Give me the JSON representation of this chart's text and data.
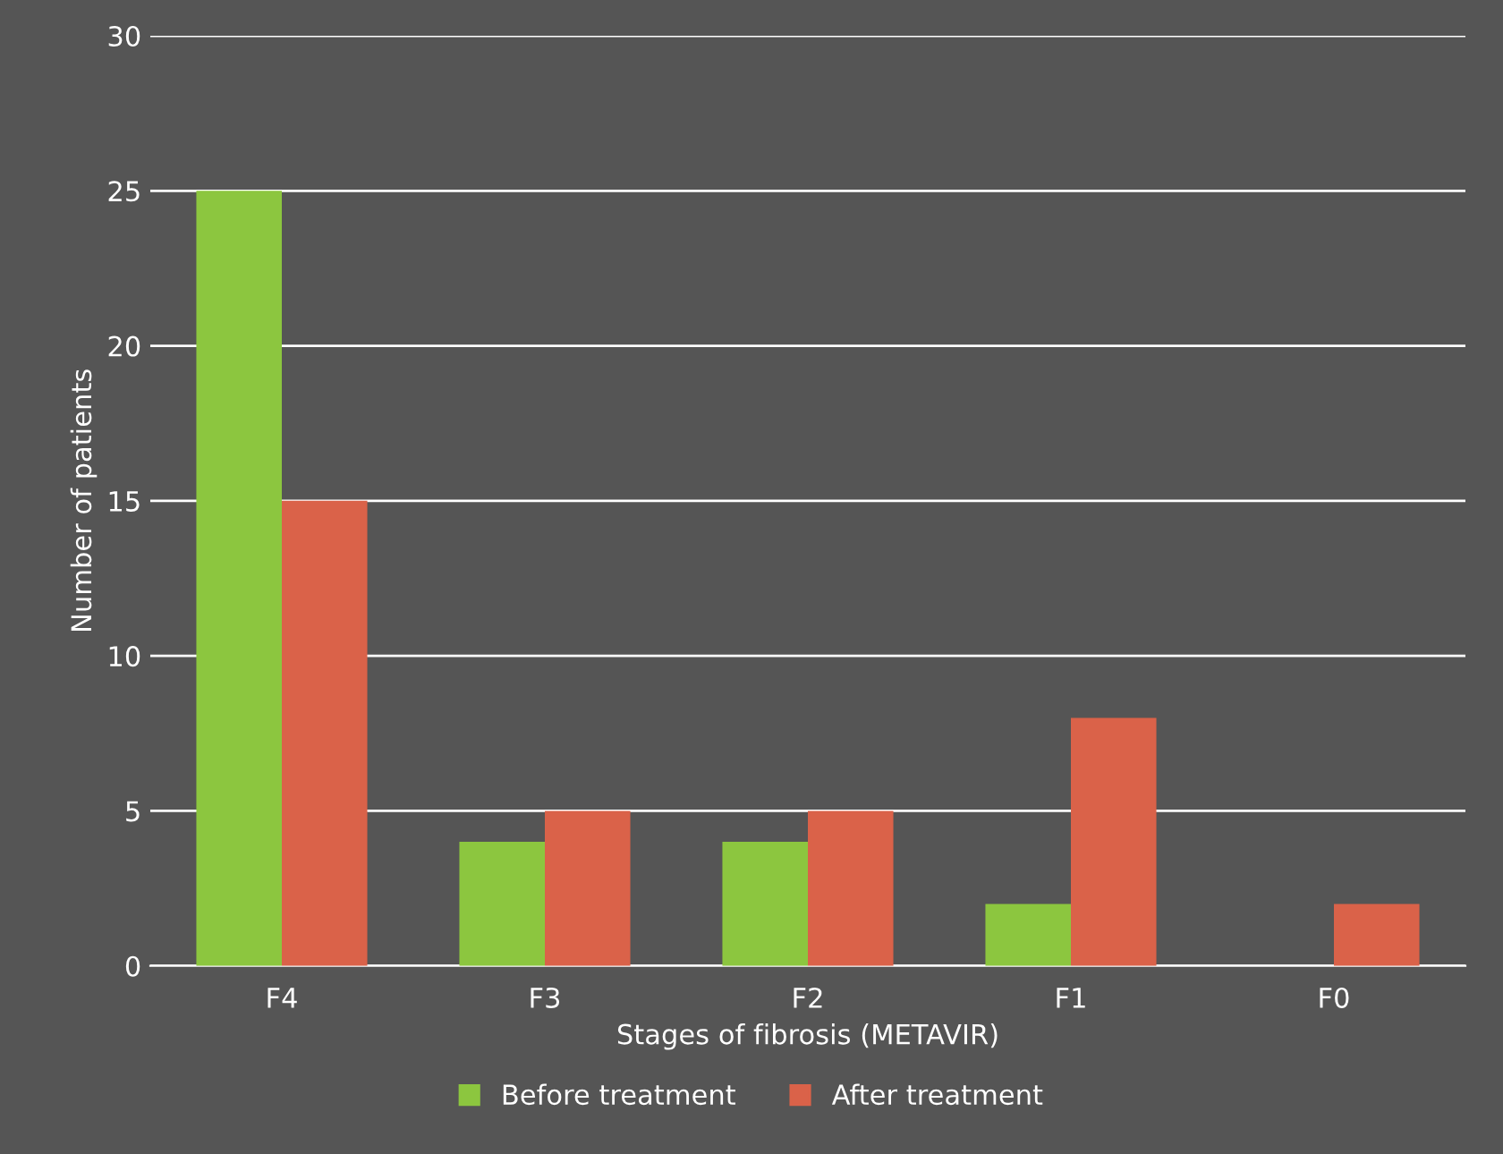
{
  "chart_data": {
    "type": "bar",
    "xlabel": "Stages of fibrosis (METAVIR)",
    "ylabel": "Number of patients",
    "categories": [
      "F4",
      "F3",
      "F2",
      "F1",
      "F0"
    ],
    "series": [
      {
        "name": "Before treatment",
        "color": "#8cc63f",
        "values": [
          25,
          4,
          4,
          2,
          0
        ]
      },
      {
        "name": "After treatment",
        "color": "#da6249",
        "values": [
          15,
          5,
          5,
          8,
          2
        ]
      }
    ],
    "ylim": [
      0,
      30
    ],
    "yticks": [
      0,
      5,
      10,
      15,
      20,
      25,
      30
    ],
    "grid": "y",
    "legend": "bottom"
  }
}
